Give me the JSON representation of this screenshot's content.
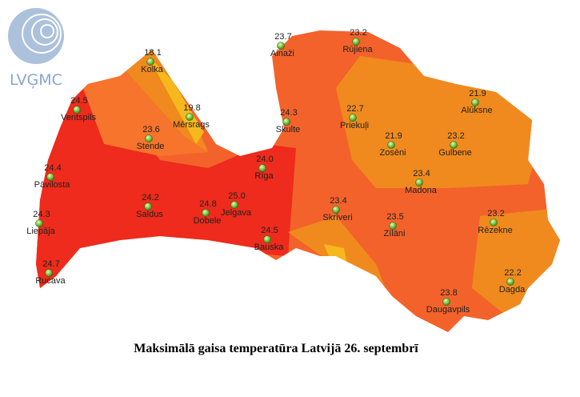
{
  "logo": {
    "text": "LVĢMC"
  },
  "caption": "Maksimālā gaisa temperatūra Latvijā 26. septembrī",
  "stations": [
    {
      "name": "Kolka",
      "temp": "18.1"
    },
    {
      "name": "Ventspils",
      "temp": "24.5"
    },
    {
      "name": "Mērsrags",
      "temp": "19.8"
    },
    {
      "name": "Stende",
      "temp": "23.6"
    },
    {
      "name": "Ainaži",
      "temp": "23.7"
    },
    {
      "name": "Rūjiena",
      "temp": "23.2"
    },
    {
      "name": "Skulte",
      "temp": "24.3"
    },
    {
      "name": "Priekuļi",
      "temp": "22.7"
    },
    {
      "name": "Alūksne",
      "temp": "21.9"
    },
    {
      "name": "Zosēni",
      "temp": "21.9"
    },
    {
      "name": "Gulbene",
      "temp": "23.2"
    },
    {
      "name": "Pāvilosta",
      "temp": "24.4"
    },
    {
      "name": "Rīga",
      "temp": "24.0"
    },
    {
      "name": "Madona",
      "temp": "23.4"
    },
    {
      "name": "Saldus",
      "temp": "24.2"
    },
    {
      "name": "Dobele",
      "temp": "24.8"
    },
    {
      "name": "Jelgava",
      "temp": "25.0"
    },
    {
      "name": "Skrīveri",
      "temp": "23.4"
    },
    {
      "name": "Zīlāni",
      "temp": "23.5"
    },
    {
      "name": "Rēzekne",
      "temp": "23.2"
    },
    {
      "name": "Liepāja",
      "temp": "24.3"
    },
    {
      "name": "Bauska",
      "temp": "24.5"
    },
    {
      "name": "Rucava",
      "temp": "24.7"
    },
    {
      "name": "Dagda",
      "temp": "22.2"
    },
    {
      "name": "Daugavpils",
      "temp": "23.8"
    }
  ]
}
